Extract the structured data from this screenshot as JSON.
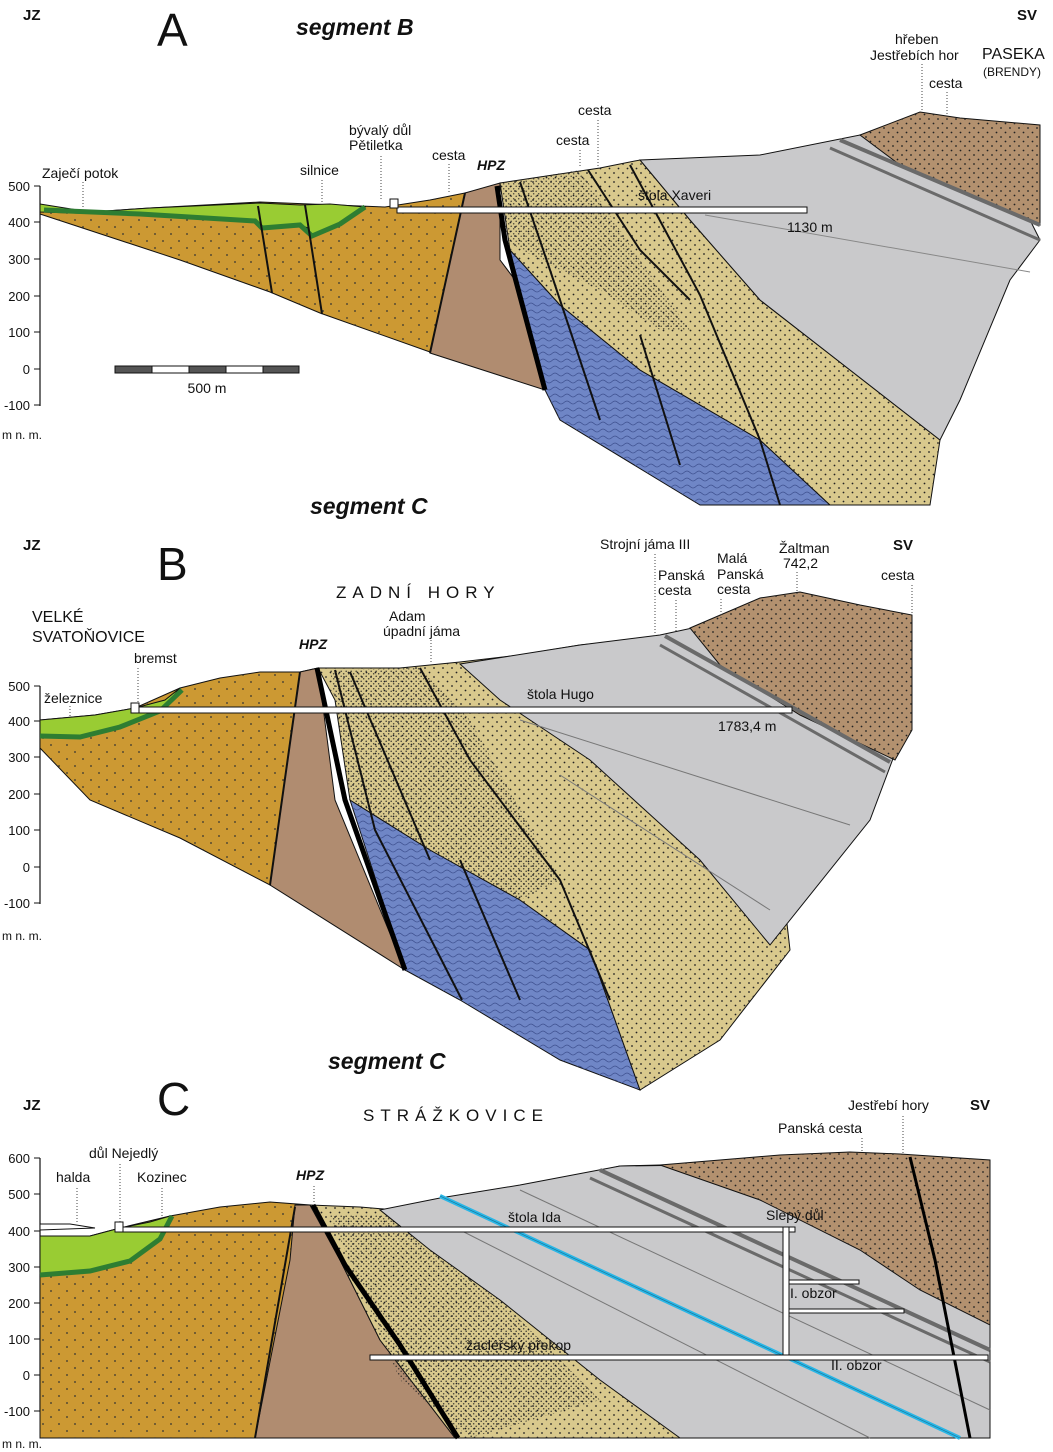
{
  "colors": {
    "light_green": "#99cc33",
    "dark_green": "#2e7d32",
    "orange": "#cc9933",
    "brown_fault_block": "#b08c70",
    "blue_layer": "#6f86c6",
    "sandstone": "#d9c98d",
    "grey": "#c9c9cb",
    "dark_grey_bands": "#707070",
    "top_brown": "#b3916f",
    "cyan_seam": "#29b6e6",
    "outline": "#111111"
  },
  "panelA": {
    "letter": "A",
    "segment_top": "segment  B",
    "dir_left": "JZ",
    "dir_right": "SV",
    "axis_ticks": [
      "500",
      "400",
      "300",
      "200",
      "100",
      "0",
      "-100"
    ],
    "axis_unit": "m n. m.",
    "scale_label": "500 m",
    "labels": {
      "zajeci": "Zaječí potok",
      "silnice": "silnice",
      "byvaly1": "bývalý důl",
      "byvaly2": "Pětiletka",
      "cesta1": "cesta",
      "hpz": "HPZ",
      "cesta2": "cesta",
      "cesta3": "cesta",
      "hreben1": "hřeben",
      "hreben2": "Jestřebích hor",
      "cesta4": "cesta",
      "paseka": "PASEKA",
      "brendy": "(BRENDY)",
      "stola": "štola Xaveri",
      "length": "1130 m"
    },
    "segment_bottom": "segment  C"
  },
  "panelB": {
    "letter": "B",
    "dir_left": "JZ",
    "dir_right": "SV",
    "axis_ticks": [
      "500",
      "400",
      "300",
      "200",
      "100",
      "0",
      "-100"
    ],
    "axis_unit": "m n. m.",
    "labels": {
      "velke1": "VELKÉ",
      "velke2": "SVATOŇOVICE",
      "bremst": "bremst",
      "zeleznice": "železnice",
      "hpz": "HPZ",
      "zadni": "ZADNÍ HORY",
      "adam1": "Adam",
      "adam2": "úpadní jáma",
      "strojni": "Strojní jáma III",
      "panska1": "Panská",
      "panska2": "cesta",
      "mala1": "Malá",
      "mala2": "Panská",
      "mala3": "cesta",
      "zaltman1": "Žaltman",
      "zaltman2": "742,2",
      "cesta": "cesta",
      "stola": "štola Hugo",
      "length": "1783,4 m"
    },
    "segment_bottom": "segment  C"
  },
  "panelC": {
    "letter": "C",
    "dir_left": "JZ",
    "dir_right": "SV",
    "axis_ticks": [
      "600",
      "500",
      "400",
      "300",
      "200",
      "100",
      "0",
      "-100"
    ],
    "axis_unit": "m n. m.",
    "labels": {
      "strazkovice": "STRÁŽKOVICE",
      "dul_nejedly": "důl Nejedlý",
      "halda": "halda",
      "kozinec": "Kozinec",
      "hpz": "HPZ",
      "jestrebi": "Jestřebí hory",
      "panska": "Panská cesta",
      "stola": "štola Ida",
      "slepy": "Slepý důl",
      "obzor1": "I. obzor",
      "zaclersky": "žacléřský překop",
      "obzor2": "II. obzor"
    }
  }
}
